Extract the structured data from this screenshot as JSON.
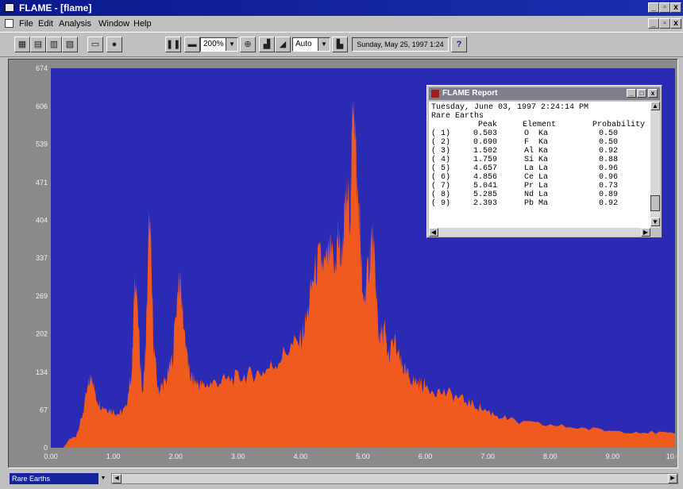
{
  "window": {
    "title": "FLAME - [flame]",
    "controls": {
      "minimize": "_",
      "restore": "▫",
      "close": "x"
    }
  },
  "menu": {
    "items": [
      "File",
      "Edit",
      "Analysis",
      "Window",
      "Help"
    ],
    "doc_controls": {
      "minimize": "_",
      "restore": "▫",
      "close": "x"
    }
  },
  "toolbar": {
    "zoom_value": "200%",
    "scale_value": "Auto",
    "date_display": "Sunday, May 25, 1997 1:24",
    "help_label": "?"
  },
  "icons": [
    "app-icon",
    "open-icon",
    "save-icon",
    "print-icon",
    "copy-icon",
    "record-icon",
    "stop-icon",
    "zoom-out-icon",
    "zoom-in-icon",
    "spectrum-icon",
    "log-scale-icon",
    "help-icon"
  ],
  "colors": {
    "plot_background": "#2a2ab4",
    "spectrum_fill": "#f05a1e",
    "title_bar": "#0a1a8c"
  },
  "chart_data": {
    "type": "area",
    "title": "",
    "xlabel": "",
    "ylabel": "",
    "xlim": [
      0,
      10
    ],
    "ylim": [
      0,
      674
    ],
    "x_ticks": [
      "0.00",
      "1.00",
      "2.00",
      "3.00",
      "4.00",
      "5.00",
      "6.00",
      "7.00",
      "8.00",
      "9.00",
      "10.00"
    ],
    "y_ticks": [
      "0",
      "67",
      "134",
      "202",
      "269",
      "337",
      "404",
      "471",
      "539",
      "606",
      "674"
    ],
    "x": [
      0.0,
      0.2,
      0.3,
      0.4,
      0.5,
      0.6,
      0.66,
      0.72,
      0.8,
      0.9,
      1.0,
      1.1,
      1.2,
      1.3,
      1.35,
      1.4,
      1.47,
      1.52,
      1.58,
      1.65,
      1.72,
      1.78,
      1.85,
      1.95,
      2.05,
      2.15,
      2.22,
      2.28,
      2.35,
      2.45,
      2.6,
      2.8,
      3.0,
      3.2,
      3.4,
      3.6,
      3.8,
      4.0,
      4.1,
      4.2,
      4.3,
      4.4,
      4.48,
      4.55,
      4.6,
      4.65,
      4.7,
      4.75,
      4.8,
      4.85,
      4.9,
      4.95,
      5.0,
      5.04,
      5.1,
      5.15,
      5.2,
      5.25,
      5.3,
      5.35,
      5.4,
      5.5,
      5.6,
      5.65,
      5.7,
      5.8,
      5.9,
      6.0,
      6.2,
      6.4,
      6.6,
      6.8,
      7.0,
      7.2,
      7.5,
      8.0,
      8.5,
      9.0,
      9.5,
      10.0
    ],
    "values": [
      0,
      0,
      15,
      20,
      55,
      110,
      130,
      90,
      75,
      70,
      65,
      60,
      70,
      140,
      320,
      220,
      90,
      180,
      420,
      180,
      100,
      110,
      120,
      160,
      310,
      200,
      130,
      120,
      115,
      110,
      115,
      120,
      125,
      130,
      135,
      150,
      175,
      190,
      230,
      300,
      335,
      320,
      350,
      310,
      380,
      330,
      400,
      450,
      420,
      660,
      470,
      400,
      250,
      280,
      330,
      380,
      300,
      200,
      200,
      210,
      160,
      190,
      150,
      140,
      130,
      120,
      115,
      110,
      100,
      95,
      85,
      75,
      65,
      55,
      45,
      40,
      35,
      30,
      28,
      25
    ]
  },
  "report": {
    "title": "FLAME Report",
    "date_line": "Tuesday, June 03, 1997 2:24:14 PM",
    "heading": "Rare Earths",
    "columns": {
      "peak": "Peak",
      "element": "Element",
      "probability": "Probability"
    },
    "rows": [
      {
        "idx": "( 1)",
        "peak": "0.503",
        "element": "O  Ka",
        "probability": "0.50"
      },
      {
        "idx": "( 2)",
        "peak": "0.690",
        "element": "F  Ka",
        "probability": "0.50"
      },
      {
        "idx": "( 3)",
        "peak": "1.502",
        "element": "Al Ka",
        "probability": "0.92"
      },
      {
        "idx": "( 4)",
        "peak": "1.759",
        "element": "Si Ka",
        "probability": "0.88"
      },
      {
        "idx": "( 5)",
        "peak": "4.657",
        "element": "La La",
        "probability": "0.96"
      },
      {
        "idx": "( 6)",
        "peak": "4.856",
        "element": "Ce La",
        "probability": "0.96"
      },
      {
        "idx": "( 7)",
        "peak": "5.041",
        "element": "Pr La",
        "probability": "0.73"
      },
      {
        "idx": "( 8)",
        "peak": "5.285",
        "element": "Nd La",
        "probability": "0.89"
      },
      {
        "idx": "( 9)",
        "peak": "2.393",
        "element": "Pb Ma",
        "probability": "0.92"
      }
    ]
  },
  "statusbar": {
    "library": "Rare Earths"
  }
}
